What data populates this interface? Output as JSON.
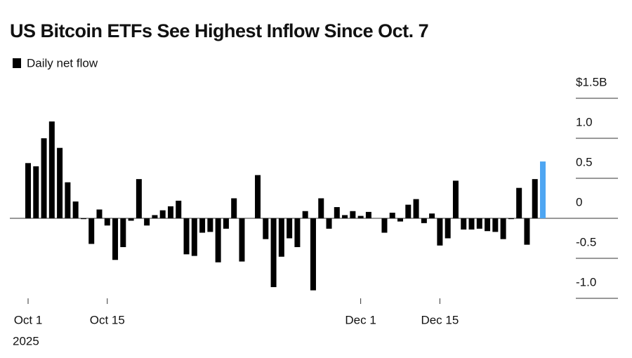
{
  "chart_data": {
    "type": "bar",
    "title": "US Bitcoin ETFs See Highest Inflow Since Oct. 7",
    "legend": "Daily net flow",
    "year_label": "2025",
    "color": "#000000",
    "highlight": {
      "index": 65,
      "color": "#4ea6f2"
    },
    "categories": [
      "Oct 1",
      null,
      null,
      null,
      null,
      null,
      null,
      null,
      null,
      null,
      "Oct 15",
      null,
      null,
      null,
      null,
      null,
      null,
      null,
      null,
      null,
      null,
      null,
      null,
      null,
      null,
      null,
      null,
      null,
      null,
      null,
      null,
      null,
      null,
      null,
      null,
      null,
      null,
      null,
      null,
      null,
      null,
      null,
      "Dec 1",
      null,
      null,
      null,
      null,
      null,
      null,
      null,
      null,
      null,
      "Dec 15",
      null,
      null,
      null,
      null,
      null,
      null,
      null,
      null,
      null,
      null,
      null,
      null,
      null
    ],
    "values": [
      0.69,
      0.65,
      1.0,
      1.21,
      0.88,
      0.45,
      0.21,
      -0.01,
      -0.32,
      0.11,
      -0.09,
      -0.52,
      -0.36,
      -0.03,
      0.49,
      -0.09,
      0.04,
      0.1,
      0.15,
      0.22,
      -0.45,
      -0.47,
      -0.18,
      -0.17,
      -0.55,
      -0.13,
      0.25,
      -0.54,
      0.0,
      0.54,
      -0.26,
      -0.86,
      -0.48,
      -0.25,
      -0.36,
      0.09,
      -0.9,
      0.25,
      -0.13,
      0.14,
      0.04,
      0.09,
      0.03,
      0.08,
      0.0,
      -0.18,
      0.07,
      -0.04,
      0.17,
      0.24,
      -0.06,
      0.06,
      -0.34,
      -0.25,
      0.47,
      -0.14,
      -0.14,
      -0.13,
      -0.16,
      -0.17,
      -0.26,
      -0.01,
      0.38,
      -0.33,
      0.49,
      0.71
    ],
    "ylim": [
      -1.0,
      1.5
    ],
    "yticks": [
      {
        "value": 1.5,
        "label": "$1.5B"
      },
      {
        "value": 1.0,
        "label": "1.0"
      },
      0.5,
      0,
      -0.5,
      {
        "value": -1.0,
        "label": "-1.0"
      }
    ],
    "grid": true
  }
}
